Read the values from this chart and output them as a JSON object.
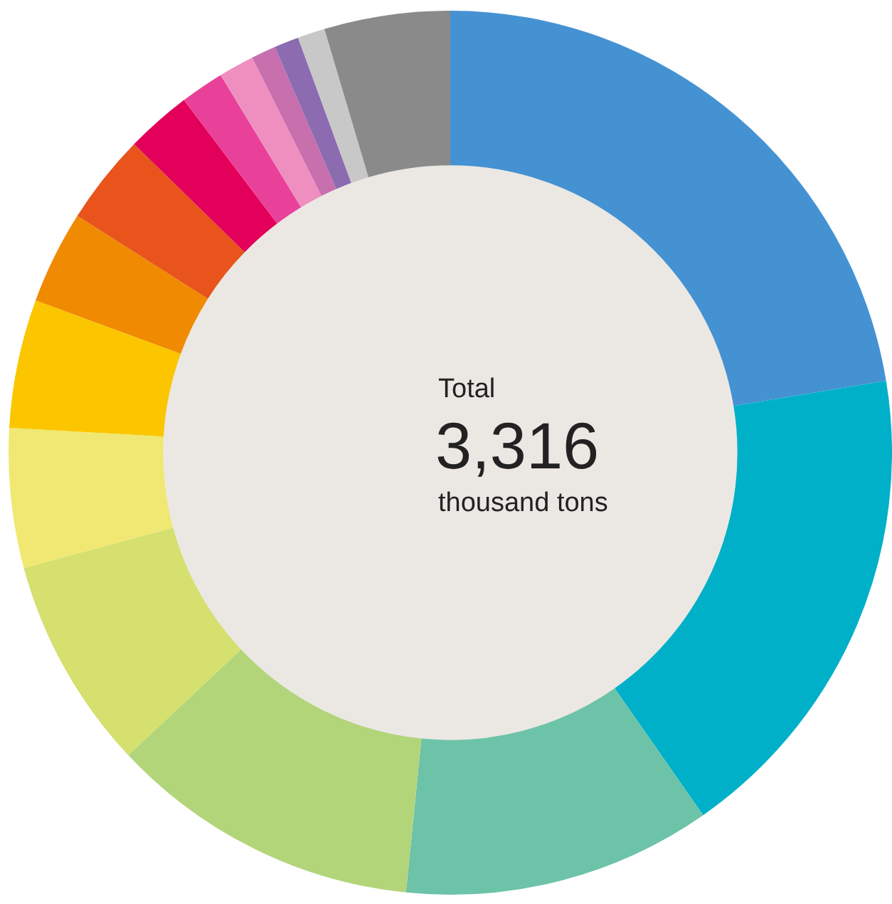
{
  "chart_data": {
    "type": "donut",
    "categories": [
      null,
      null,
      null,
      null,
      null,
      null,
      null,
      null,
      null,
      null,
      null,
      null,
      null,
      null,
      null,
      null
    ],
    "values": [
      22.4,
      17.9,
      11.3,
      11.4,
      7.8,
      5.1,
      4.7,
      3.4,
      3.3,
      2.4,
      1.6,
      1.3,
      0.9,
      0.9,
      1.0,
      4.6
    ],
    "colors": [
      "#4592d3",
      "#00b0c8",
      "#6cc3a8",
      "#b2d57a",
      "#d5e06e",
      "#f0e872",
      "#fbc600",
      "#f08a00",
      "#e8541c",
      "#e2005a",
      "#e9419a",
      "#ef8fc0",
      "#c86fae",
      "#8c6bb1",
      "#c8c8c8",
      "#8a8a8a"
    ],
    "annotations": [
      "Total",
      "3,316",
      "thousand tons"
    ],
    "legend": false
  }
}
